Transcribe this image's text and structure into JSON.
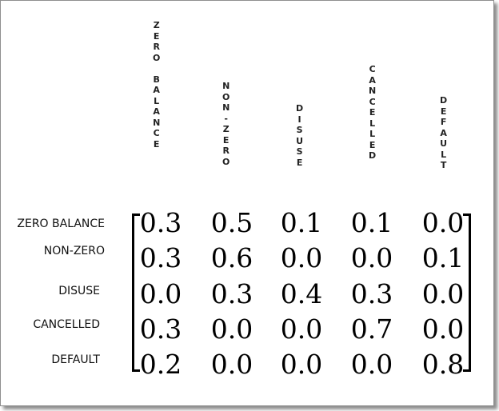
{
  "columns": [
    "ZERO BALANCE",
    "NON-ZERO",
    "DISUSE",
    "CANCELLED",
    "DEFAULT"
  ],
  "rows": [
    "ZERO BALANCE",
    "NON-ZERO",
    "DISUSE",
    "CANCELLED",
    "DEFAULT"
  ],
  "matrix": [
    [
      "0.3",
      "0.5",
      "0.1",
      "0.1",
      "0.0"
    ],
    [
      "0.3",
      "0.6",
      "0.0",
      "0.0",
      "0.1"
    ],
    [
      "0.0",
      "0.3",
      "0.4",
      "0.3",
      "0.0"
    ],
    [
      "0.3",
      "0.0",
      "0.0",
      "0.7",
      "0.0"
    ],
    [
      "0.2",
      "0.0",
      "0.0",
      "0.0",
      "0.8"
    ]
  ]
}
